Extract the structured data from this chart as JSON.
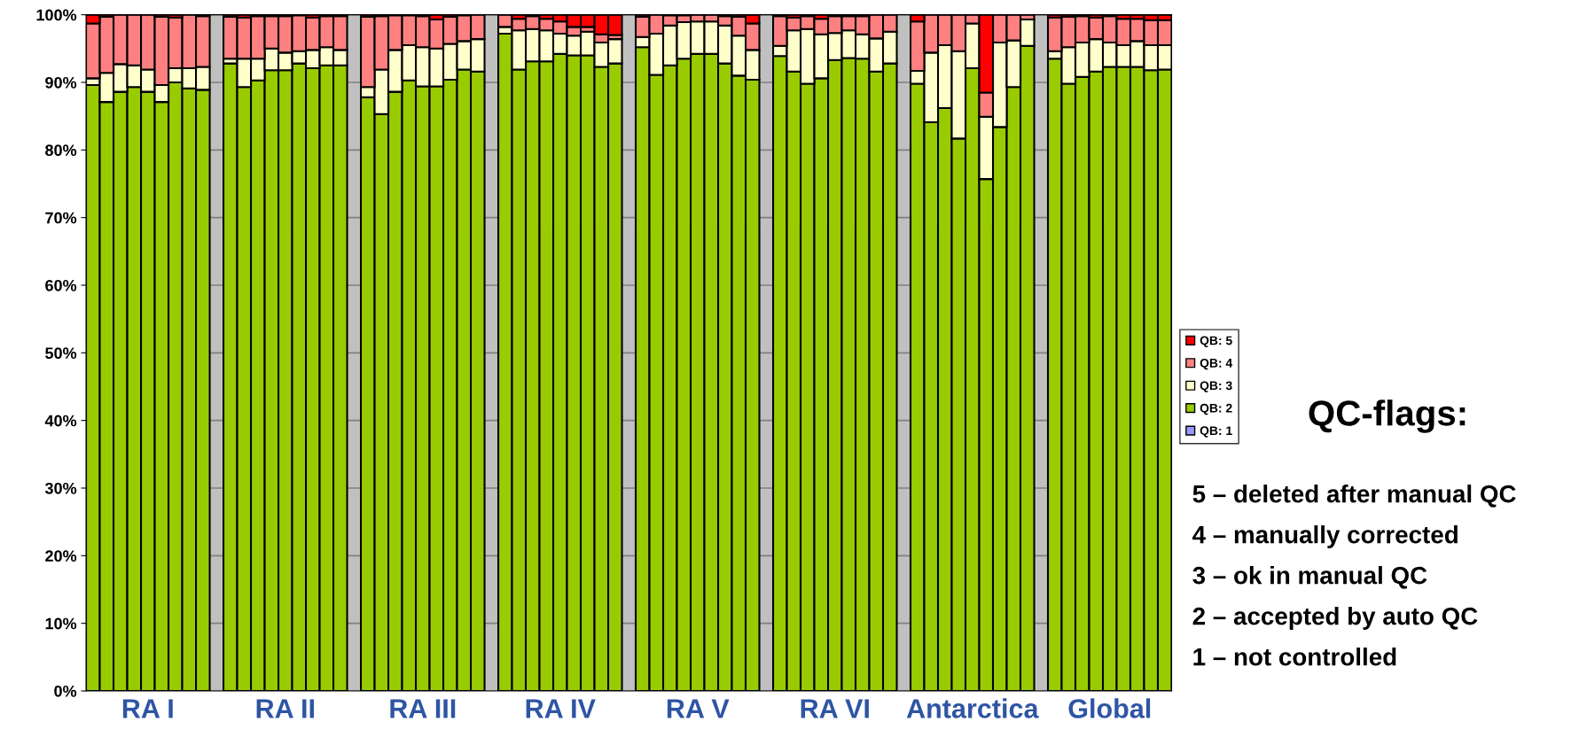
{
  "chart_data": {
    "type": "bar",
    "stacked": true,
    "grid": "y",
    "legend": "right",
    "categories": [
      null,
      null,
      null,
      null,
      "RA I",
      null,
      null,
      null,
      null,
      null,
      null,
      null,
      null,
      null,
      "RA II",
      null,
      null,
      null,
      null,
      null,
      null,
      null,
      null,
      null,
      "RA III",
      null,
      null,
      null,
      null,
      null,
      null,
      null,
      null,
      null,
      "RA IV",
      null,
      null,
      null,
      null,
      null,
      null,
      null,
      null,
      null,
      "RA V",
      null,
      null,
      null,
      null,
      null,
      null,
      null,
      null,
      null,
      "RA VI",
      null,
      null,
      null,
      null,
      null,
      null,
      null,
      null,
      null,
      "Antarctica",
      null,
      null,
      null,
      null,
      null,
      null,
      null,
      null,
      null,
      "Global",
      null,
      null,
      null,
      null
    ],
    "ylim": [
      0,
      100
    ],
    "yticks": [
      {
        "value": 0,
        "label": "0%"
      },
      {
        "value": 10,
        "label": "10%"
      },
      {
        "value": 20,
        "label": "20%"
      },
      {
        "value": 30,
        "label": "30%"
      },
      {
        "value": 40,
        "label": "40%"
      },
      {
        "value": 50,
        "label": "50%"
      },
      {
        "value": 60,
        "label": "60%"
      },
      {
        "value": 70,
        "label": "70%"
      },
      {
        "value": 80,
        "label": "80%"
      },
      {
        "value": 90,
        "label": "90%"
      },
      {
        "value": 100,
        "label": "100%"
      }
    ],
    "series": [
      {
        "name": "QB: 1",
        "color": "#9999ff",
        "values": [
          0,
          0,
          0,
          0,
          0,
          0,
          0,
          0,
          0,
          null,
          0,
          0,
          0,
          0,
          0,
          0,
          0,
          0,
          0,
          null,
          0,
          0,
          0,
          0,
          0,
          0,
          0,
          0,
          0,
          null,
          0,
          0,
          0,
          0,
          0,
          0,
          0,
          0,
          0,
          null,
          0,
          0,
          0,
          0,
          0,
          0,
          0,
          0,
          0,
          null,
          0,
          0,
          0,
          0,
          0,
          0,
          0,
          0,
          0,
          null,
          0,
          0,
          0,
          0,
          0,
          0,
          0,
          0,
          0,
          null,
          0,
          0,
          0,
          0,
          0,
          0,
          0,
          0,
          0
        ]
      },
      {
        "name": "QB: 2",
        "color": "#99cc00",
        "values": [
          89.6,
          87.1,
          88.6,
          89.3,
          88.6,
          87.1,
          90.0,
          89.1,
          88.9,
          null,
          92.8,
          89.3,
          90.3,
          91.8,
          91.8,
          92.8,
          92.1,
          92.5,
          92.5,
          null,
          87.8,
          85.3,
          88.6,
          90.3,
          89.4,
          89.4,
          90.4,
          91.9,
          91.6,
          null,
          97.2,
          91.9,
          93.1,
          93.1,
          94.2,
          94.0,
          94.0,
          92.3,
          92.8,
          null,
          95.2,
          91.1,
          92.5,
          93.5,
          94.2,
          94.2,
          92.8,
          91.0,
          90.4,
          null,
          93.9,
          91.6,
          89.8,
          90.6,
          93.3,
          93.6,
          93.5,
          91.6,
          92.8,
          null,
          89.8,
          84.1,
          86.2,
          81.7,
          92.1,
          75.7,
          83.4,
          89.3,
          95.4,
          null,
          93.5,
          89.8,
          90.8,
          91.6,
          92.3,
          92.3,
          92.3,
          91.8,
          91.9
        ]
      },
      {
        "name": "QB: 3",
        "color": "#ffffcc",
        "values": [
          1.0,
          4.3,
          4.1,
          3.2,
          3.3,
          2.5,
          2.1,
          3.0,
          3.4,
          null,
          0.7,
          4.2,
          3.2,
          3.2,
          2.6,
          1.8,
          2.7,
          2.7,
          2.3,
          null,
          1.5,
          6.6,
          6.2,
          5.2,
          5.8,
          5.6,
          5.3,
          4.2,
          4.8,
          null,
          1.0,
          5.8,
          4.8,
          4.6,
          3.0,
          2.9,
          3.5,
          3.6,
          3.6,
          null,
          1.5,
          6.1,
          5.9,
          5.4,
          4.8,
          4.8,
          5.6,
          5.9,
          4.4,
          null,
          1.5,
          6.1,
          8.1,
          6.5,
          4.0,
          4.1,
          3.6,
          4.9,
          4.7,
          null,
          1.9,
          10.3,
          9.3,
          12.9,
          6.6,
          9.2,
          12.5,
          6.9,
          3.9,
          null,
          1.1,
          5.4,
          5.1,
          4.8,
          3.6,
          3.2,
          3.8,
          3.7,
          3.6
        ]
      },
      {
        "name": "QB: 4",
        "color": "#ff8080",
        "values": [
          8.1,
          8.3,
          7.3,
          7.5,
          8.1,
          10.1,
          7.5,
          7.9,
          7.5,
          null,
          6.2,
          6.1,
          6.3,
          4.8,
          5.4,
          5.3,
          4.8,
          4.6,
          5.0,
          null,
          10.4,
          7.9,
          5.1,
          4.4,
          4.6,
          4.3,
          4.0,
          3.8,
          3.6,
          null,
          1.8,
          1.7,
          1.9,
          1.7,
          1.8,
          1.3,
          0.7,
          1.2,
          0.6,
          null,
          3.0,
          2.8,
          1.5,
          1.0,
          1.0,
          1.0,
          1.4,
          2.8,
          3.9,
          null,
          4.4,
          1.9,
          1.9,
          2.3,
          2.5,
          2.1,
          2.7,
          3.5,
          2.5,
          null,
          7.3,
          5.6,
          4.5,
          5.4,
          1.3,
          3.6,
          4.1,
          3.8,
          0.7,
          null,
          5.0,
          4.5,
          3.9,
          3.2,
          3.9,
          3.9,
          3.3,
          3.7,
          3.7
        ]
      },
      {
        "name": "QB: 5",
        "color": "#ff0000",
        "values": [
          1.3,
          0.3,
          0,
          0,
          0,
          0.3,
          0.4,
          0,
          0.2,
          null,
          0.3,
          0.4,
          0.2,
          0.2,
          0.2,
          null,
          0.4,
          0.2,
          0.2,
          null,
          0.3,
          0.2,
          null,
          null,
          0.2,
          0.7,
          0.3,
          null,
          0,
          null,
          0,
          0.6,
          0.2,
          0.6,
          1.0,
          1.8,
          1.8,
          2.9,
          3.0,
          null,
          0.3,
          0,
          null,
          null,
          0,
          0,
          0.2,
          0.3,
          1.3,
          null,
          0.2,
          0.4,
          0.2,
          0.6,
          0.2,
          0.2,
          0.2,
          0,
          0,
          null,
          1.0,
          0,
          0,
          0,
          0,
          11.5,
          0,
          0,
          0,
          null,
          0.4,
          0.3,
          0.2,
          0.4,
          0.2,
          0.6,
          0.6,
          0.8,
          0.8
        ]
      }
    ],
    "annotations": [
      "QC-flags:",
      "5 – deleted after manual QC",
      "4 – manually corrected",
      "3 – ok in manual QC",
      "2 – accepted by auto QC",
      "1 – not controlled"
    ]
  }
}
